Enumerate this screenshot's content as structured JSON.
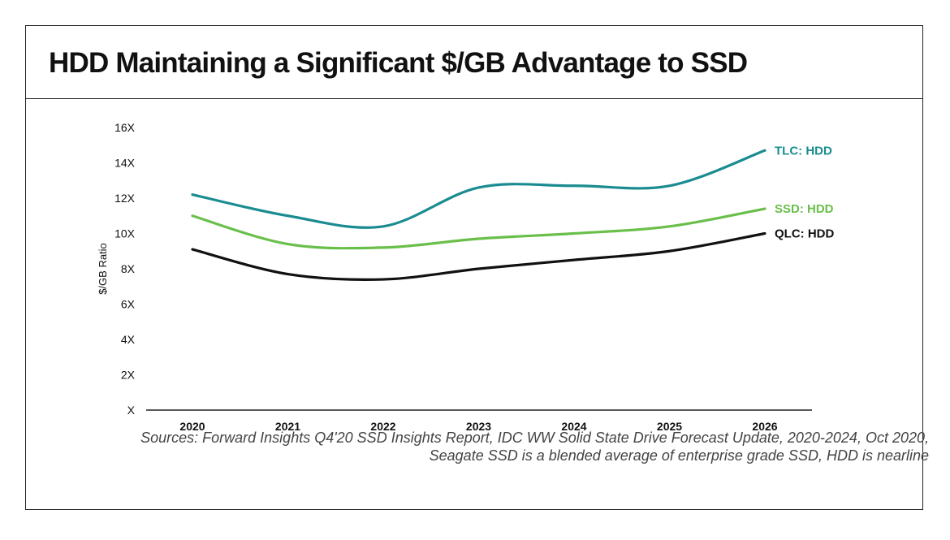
{
  "header": {
    "title": "HDD Maintaining a Significant $/GB Advantage to SSD"
  },
  "chart_data": {
    "type": "line",
    "title": "HDD Maintaining a Significant $/GB Advantage to SSD",
    "xlabel": "",
    "ylabel": "$/GB Ratio",
    "categories": [
      "2020",
      "2021",
      "2022",
      "2023",
      "2024",
      "2025",
      "2026"
    ],
    "ylim": [
      0,
      16
    ],
    "yticks": [
      0,
      2,
      4,
      6,
      8,
      10,
      12,
      14,
      16
    ],
    "ytick_labels": [
      "X",
      "2X",
      "4X",
      "6X",
      "8X",
      "10X",
      "12X",
      "14X",
      "16X"
    ],
    "grid": false,
    "legend": "direct labels at line ends (right)",
    "series": [
      {
        "name": "TLC: HDD",
        "color": "#1a8c91",
        "values": [
          12.2,
          11.0,
          10.4,
          12.6,
          12.7,
          12.7,
          14.7
        ]
      },
      {
        "name": "SSD: HDD",
        "color": "#6abf4b",
        "values": [
          11.0,
          9.4,
          9.2,
          9.7,
          10.0,
          10.4,
          11.4
        ]
      },
      {
        "name": "QLC: HDD",
        "color": "#111111",
        "values": [
          9.1,
          7.7,
          7.4,
          8.0,
          8.5,
          9.0,
          10.0
        ]
      }
    ]
  },
  "sources": {
    "line1": "Sources: Forward Insights Q4'20 SSD Insights Report, IDC WW Solid State Drive Forecast Update, 2020-2024, Oct 2020,",
    "line2": "Seagate SSD is a blended average of enterprise grade SSD, HDD is nearline"
  }
}
